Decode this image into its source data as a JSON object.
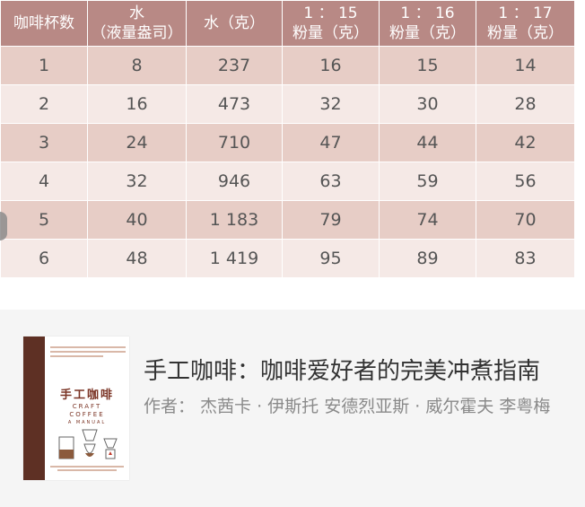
{
  "table": {
    "headers": [
      [
        "咖啡杯数"
      ],
      [
        "水",
        "（液量盎司）"
      ],
      [
        "水（克）"
      ],
      [
        "1 ： 15",
        "粉量（克）"
      ],
      [
        "1 ： 16",
        "粉量（克）"
      ],
      [
        "1 ： 17",
        "粉量（克）"
      ]
    ],
    "rows": [
      [
        "1",
        "8",
        "237",
        "16",
        "15",
        "14"
      ],
      [
        "2",
        "16",
        "473",
        "32",
        "30",
        "28"
      ],
      [
        "3",
        "24",
        "710",
        "47",
        "44",
        "42"
      ],
      [
        "4",
        "32",
        "946",
        "63",
        "59",
        "56"
      ],
      [
        "5",
        "40",
        "1 183",
        "79",
        "74",
        "70"
      ],
      [
        "6",
        "48",
        "1 419",
        "95",
        "89",
        "83"
      ]
    ]
  },
  "book": {
    "title": "手工咖啡：咖啡爱好者的完美冲煮指南",
    "author": "作者： 杰茜卡 · 伊斯托 安德烈亚斯 · 威尔霍夫 李粤梅",
    "cover_title": "手工咖啡",
    "cover_sub1": "CRAFT",
    "cover_sub2": "COFFEE",
    "cover_sub3": "A MANUAL"
  },
  "colors": {
    "header_bg": "#b88985",
    "row_dark": "#e7cdc6",
    "row_light": "#f5e9e6",
    "card_bg": "#f5f5f5",
    "spine": "#5e3024"
  }
}
